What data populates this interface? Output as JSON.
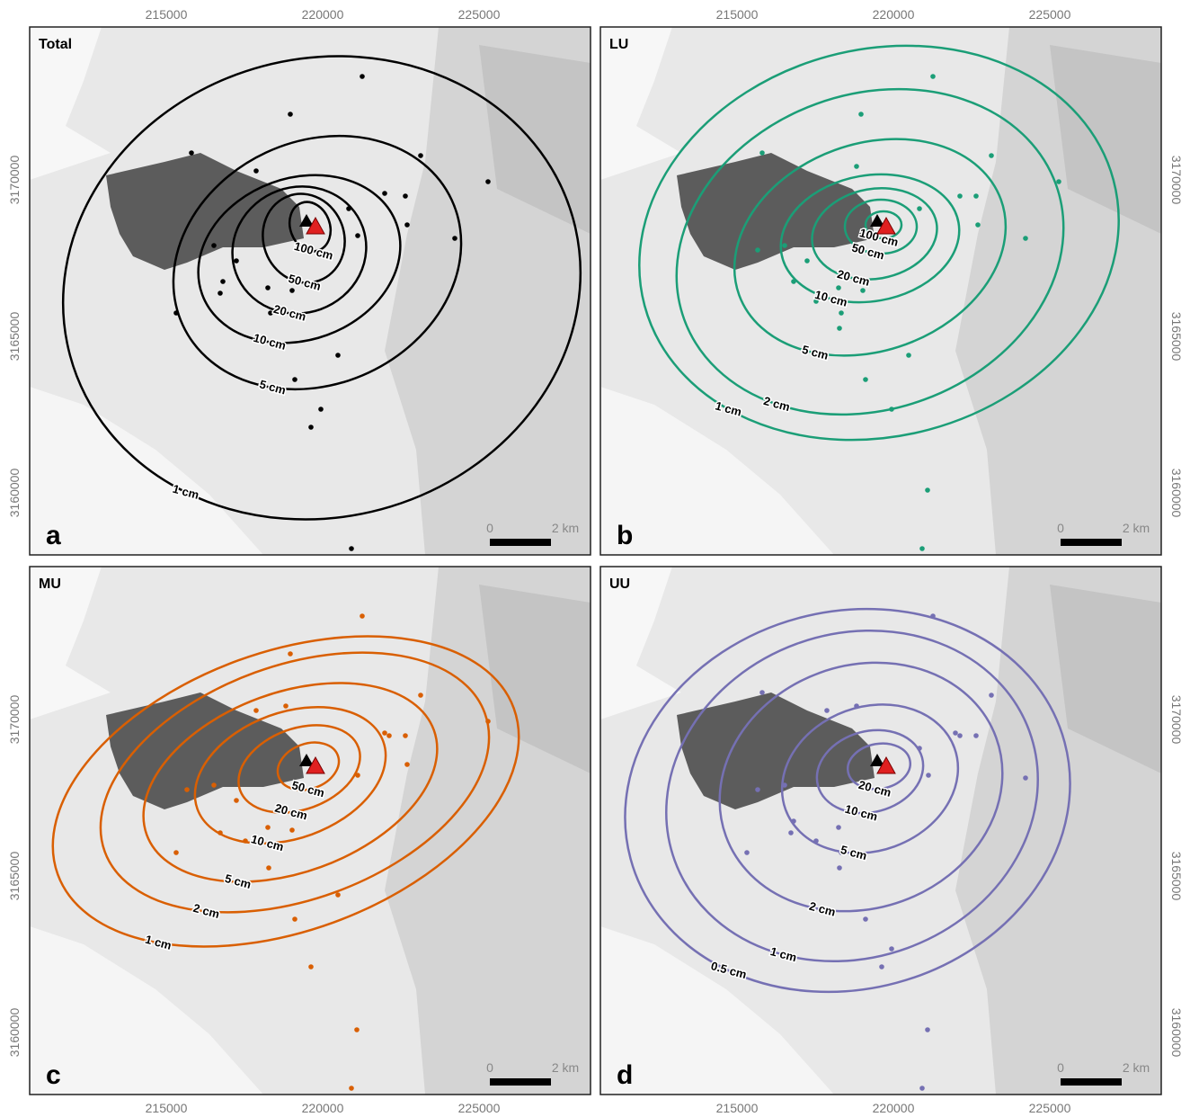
{
  "panels": [
    {
      "title": "Total",
      "letter": "a",
      "color": "#000000",
      "contour_labels": [
        "100 cm",
        "50 cm",
        "20 cm",
        "10 cm",
        "5 cm",
        "1 cm"
      ]
    },
    {
      "title": "LU",
      "letter": "b",
      "color": "#1b9e77",
      "contour_labels": [
        "100 cm",
        "50 cm",
        "20 cm",
        "10 cm",
        "5 cm",
        "2 cm",
        "1 cm"
      ]
    },
    {
      "title": "MU",
      "letter": "c",
      "color": "#d95f02",
      "contour_labels": [
        "50 cm",
        "20 cm",
        "10 cm",
        "5 cm",
        "2 cm",
        "1 cm"
      ]
    },
    {
      "title": "UU",
      "letter": "d",
      "color": "#7570b3",
      "contour_labels": [
        "20 cm",
        "10 cm",
        "5 cm",
        "2 cm",
        "1 cm",
        "0.5 cm"
      ]
    }
  ],
  "scale_bar": {
    "start": "0",
    "end": "2 km"
  },
  "xticks": [
    215000,
    220000,
    225000
  ],
  "yticks": [
    3160000,
    3165000,
    3170000
  ]
}
